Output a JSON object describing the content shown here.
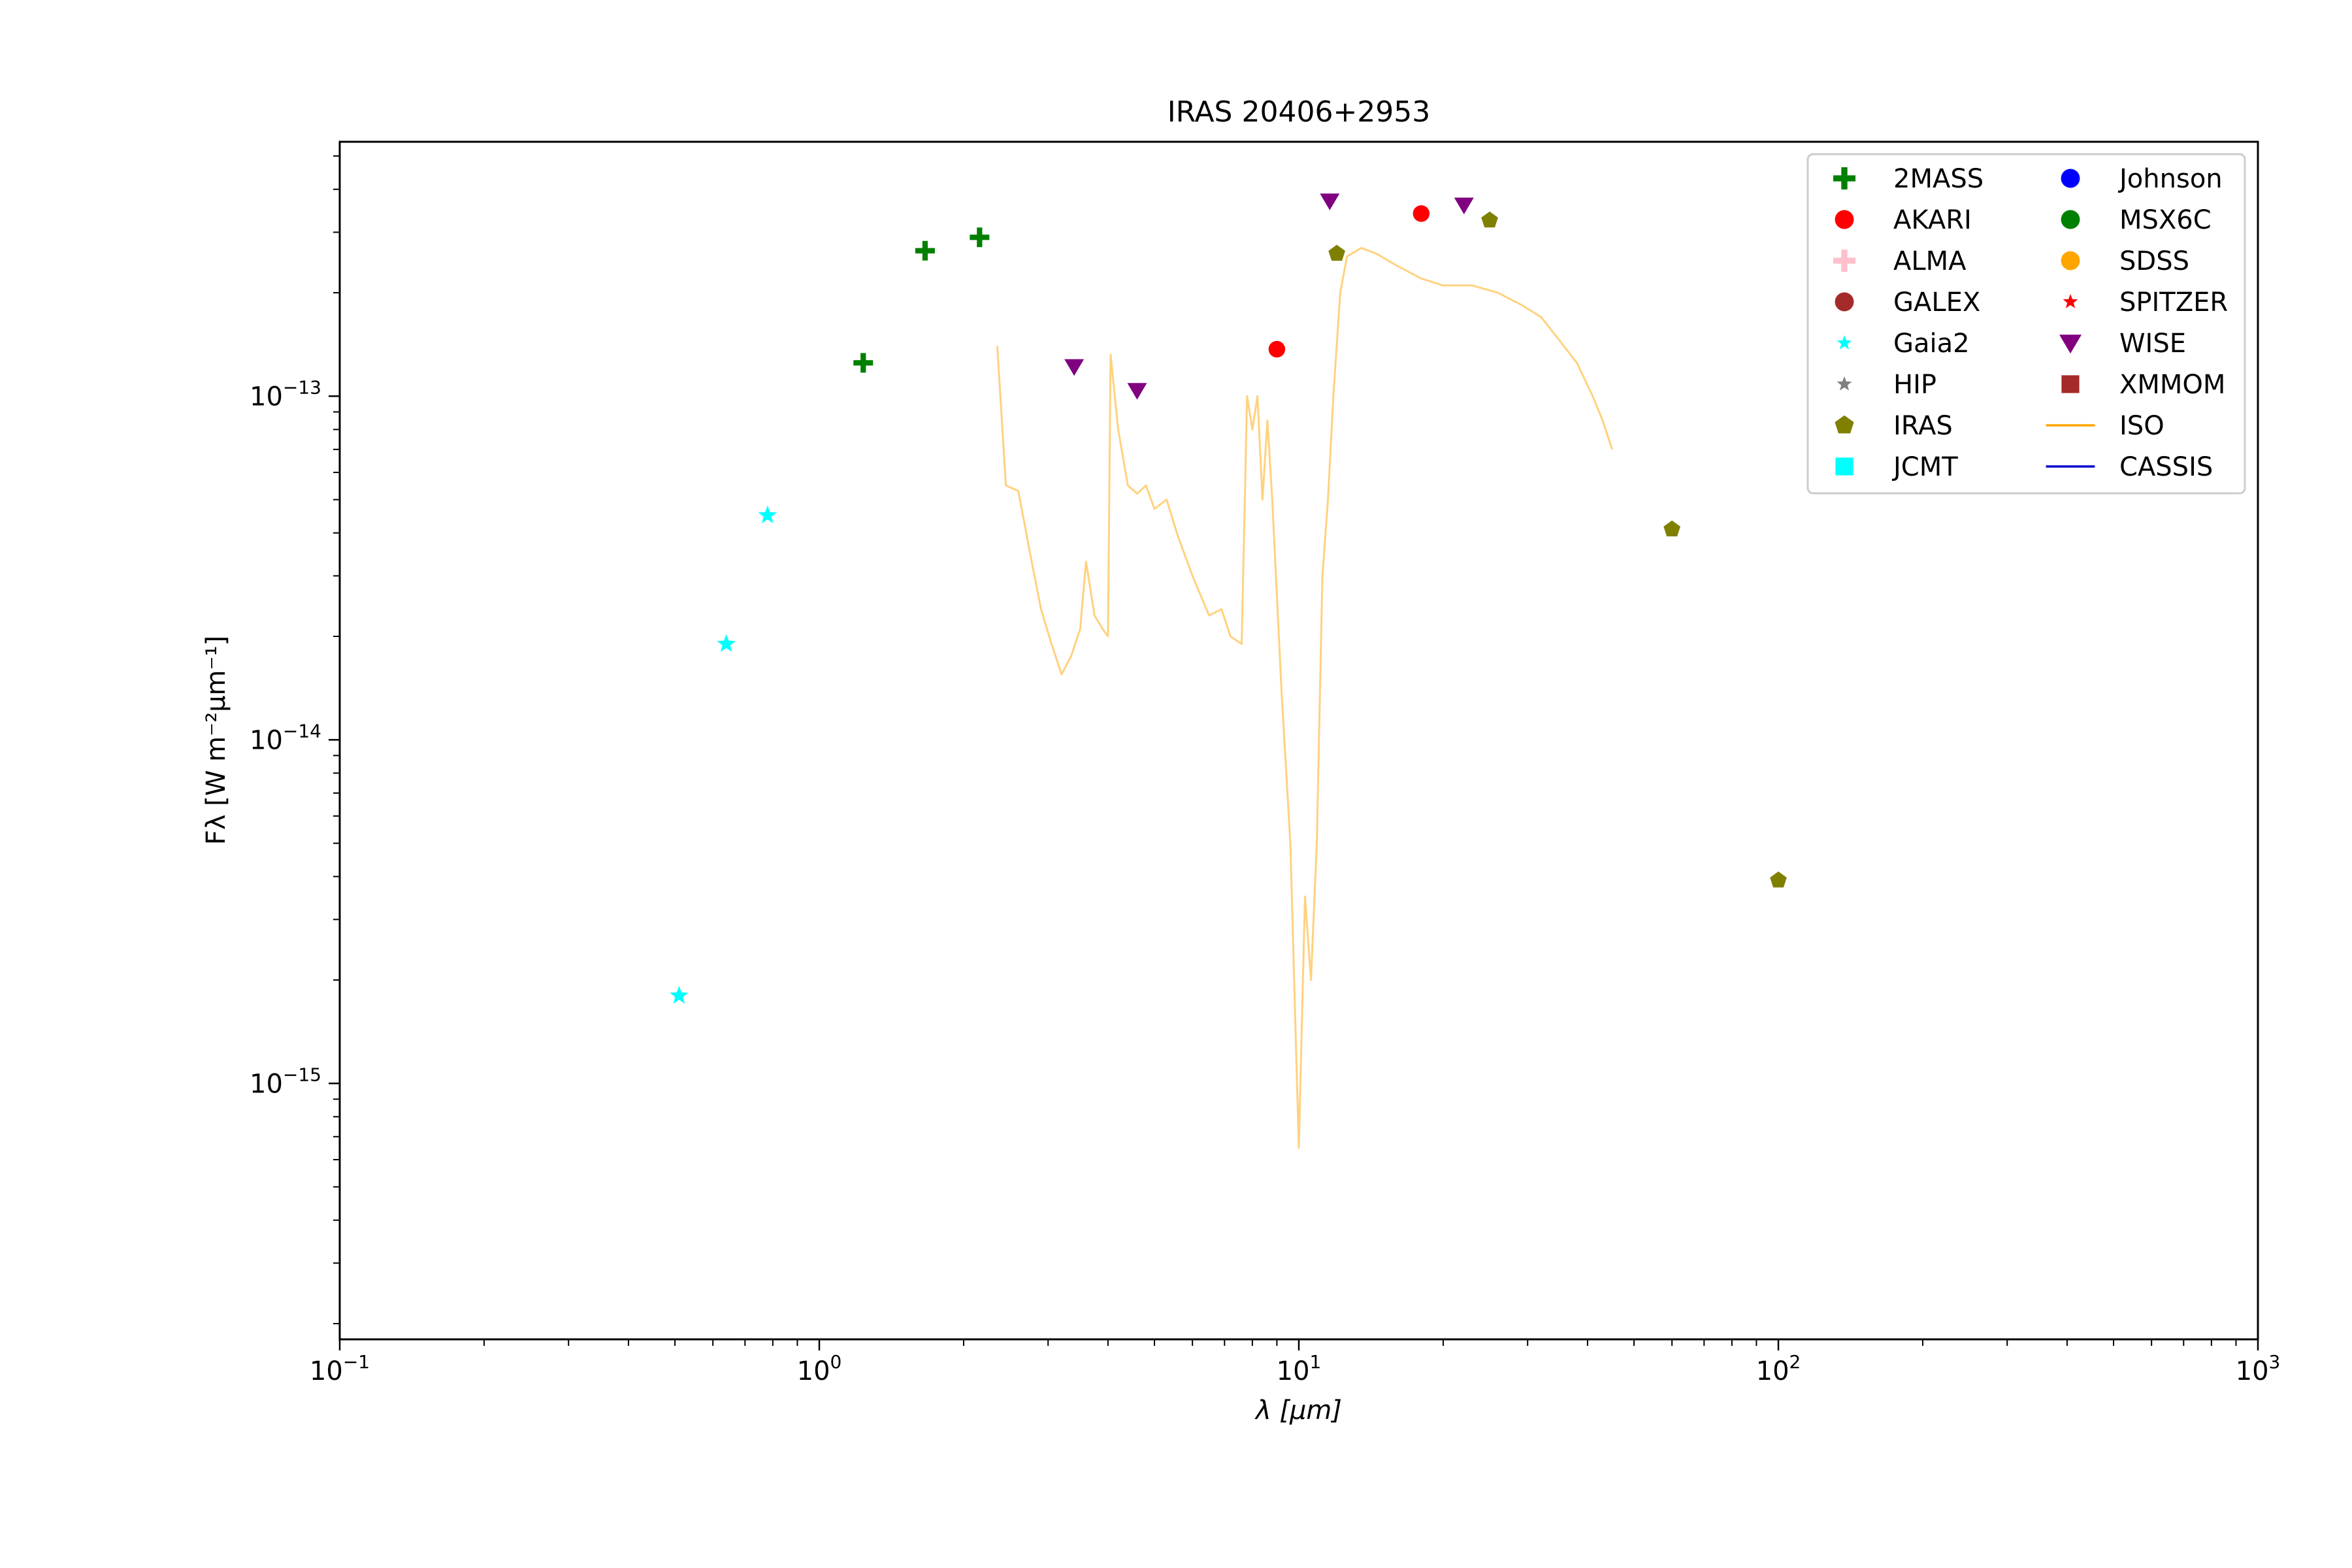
{
  "chart_data": {
    "type": "scatter",
    "title": "IRAS 20406+2953",
    "xlabel": "λ [μm]",
    "ylabel": "Fλ [W m⁻²μm⁻¹]",
    "xscale": "log",
    "yscale": "log",
    "xlim": [
      0.1,
      1000
    ],
    "ylim": [
      1.8e-16,
      5.5e-13
    ],
    "x_ticks": [
      {
        "value": 0.1,
        "base": "10",
        "exp": "−1"
      },
      {
        "value": 1,
        "base": "10",
        "exp": "0"
      },
      {
        "value": 10,
        "base": "10",
        "exp": "1"
      },
      {
        "value": 100,
        "base": "10",
        "exp": "2"
      },
      {
        "value": 1000,
        "base": "10",
        "exp": "3"
      }
    ],
    "y_ticks": [
      {
        "value": 1e-15,
        "base": "10",
        "exp": "−15"
      },
      {
        "value": 1e-14,
        "base": "10",
        "exp": "−14"
      },
      {
        "value": 1e-13,
        "base": "10",
        "exp": "−13"
      }
    ],
    "legend_position": "top-right",
    "series": [
      {
        "name": "2MASS",
        "marker": "plus",
        "color": "#008000",
        "points": [
          [
            1.235,
            1.25e-13
          ],
          [
            1.662,
            2.65e-13
          ],
          [
            2.159,
            2.9e-13
          ]
        ]
      },
      {
        "name": "AKARI",
        "marker": "circle",
        "color": "#ff0000",
        "points": [
          [
            9.0,
            1.37e-13
          ],
          [
            18.0,
            3.4e-13
          ]
        ]
      },
      {
        "name": "ALMA",
        "marker": "plus",
        "color": "#ffc0cb",
        "points": []
      },
      {
        "name": "GALEX",
        "marker": "circle",
        "color": "#a52a2a",
        "points": []
      },
      {
        "name": "Gaia2",
        "marker": "star",
        "color": "#00ffff",
        "points": [
          [
            0.51,
            1.8e-15
          ],
          [
            0.64,
            1.9e-14
          ],
          [
            0.78,
            4.5e-14
          ]
        ]
      },
      {
        "name": "HIP",
        "marker": "star",
        "color": "#808080",
        "points": []
      },
      {
        "name": "IRAS",
        "marker": "pentagon",
        "color": "#808000",
        "points": [
          [
            12,
            2.6e-13
          ],
          [
            25,
            3.25e-13
          ],
          [
            60,
            4.1e-14
          ],
          [
            100,
            3.9e-15
          ]
        ]
      },
      {
        "name": "JCMT",
        "marker": "square",
        "color": "#00ffff",
        "points": []
      },
      {
        "name": "Johnson",
        "marker": "circle",
        "color": "#0000ff",
        "points": []
      },
      {
        "name": "MSX6C",
        "marker": "circle",
        "color": "#008000",
        "points": []
      },
      {
        "name": "SDSS",
        "marker": "circle",
        "color": "#ffa500",
        "points": []
      },
      {
        "name": "SPITZER",
        "marker": "star",
        "color": "#ff0000",
        "points": []
      },
      {
        "name": "WISE",
        "marker": "triangle-down",
        "color": "#800080",
        "points": [
          [
            3.4,
            1.22e-13
          ],
          [
            4.6,
            1.04e-13
          ],
          [
            11.6,
            3.7e-13
          ],
          [
            22.1,
            3.6e-13
          ]
        ]
      },
      {
        "name": "XMMOM",
        "marker": "square",
        "color": "#a52a2a",
        "points": []
      },
      {
        "name": "ISO",
        "marker": "line",
        "color": "#ffa500",
        "points": [
          [
            2.35,
            1.4e-13
          ],
          [
            2.45,
            5.5e-14
          ],
          [
            2.6,
            5.3e-14
          ],
          [
            2.75,
            3.5e-14
          ],
          [
            2.9,
            2.4e-14
          ],
          [
            3.05,
            1.9e-14
          ],
          [
            3.2,
            1.55e-14
          ],
          [
            3.35,
            1.75e-14
          ],
          [
            3.5,
            2.1e-14
          ],
          [
            3.6,
            3.3e-14
          ],
          [
            3.75,
            2.3e-14
          ],
          [
            3.9,
            2.1e-14
          ],
          [
            4.0,
            2e-14
          ],
          [
            4.05,
            1.32e-13
          ],
          [
            4.2,
            8e-14
          ],
          [
            4.4,
            5.5e-14
          ],
          [
            4.6,
            5.2e-14
          ],
          [
            4.8,
            5.5e-14
          ],
          [
            5.0,
            4.7e-14
          ],
          [
            5.3,
            5e-14
          ],
          [
            5.6,
            3.9e-14
          ],
          [
            6.0,
            3e-14
          ],
          [
            6.5,
            2.3e-14
          ],
          [
            6.9,
            2.4e-14
          ],
          [
            7.2,
            2e-14
          ],
          [
            7.6,
            1.9e-14
          ],
          [
            7.8,
            1e-13
          ],
          [
            8.0,
            8e-14
          ],
          [
            8.2,
            1e-13
          ],
          [
            8.4,
            5e-14
          ],
          [
            8.6,
            8.5e-14
          ],
          [
            8.8,
            5e-14
          ],
          [
            9.2,
            1.4e-14
          ],
          [
            9.6,
            5e-15
          ],
          [
            10.0,
            6.5e-16
          ],
          [
            10.3,
            3.5e-15
          ],
          [
            10.6,
            2e-15
          ],
          [
            10.9,
            5e-15
          ],
          [
            11.2,
            3e-14
          ],
          [
            11.5,
            5e-14
          ],
          [
            11.8,
            1e-13
          ],
          [
            12.2,
            2e-13
          ],
          [
            12.6,
            2.55e-13
          ],
          [
            13.5,
            2.7e-13
          ],
          [
            14.5,
            2.6e-13
          ],
          [
            16,
            2.4e-13
          ],
          [
            18,
            2.2e-13
          ],
          [
            20,
            2.1e-13
          ],
          [
            23,
            2.1e-13
          ],
          [
            26,
            2e-13
          ],
          [
            29,
            1.85e-13
          ],
          [
            32,
            1.7e-13
          ],
          [
            35,
            1.45e-13
          ],
          [
            38,
            1.25e-13
          ],
          [
            41,
            1e-13
          ],
          [
            43,
            8.5e-14
          ],
          [
            45,
            7e-14
          ]
        ]
      },
      {
        "name": "CASSIS",
        "marker": "line",
        "color": "#0000cd",
        "points": []
      }
    ]
  }
}
